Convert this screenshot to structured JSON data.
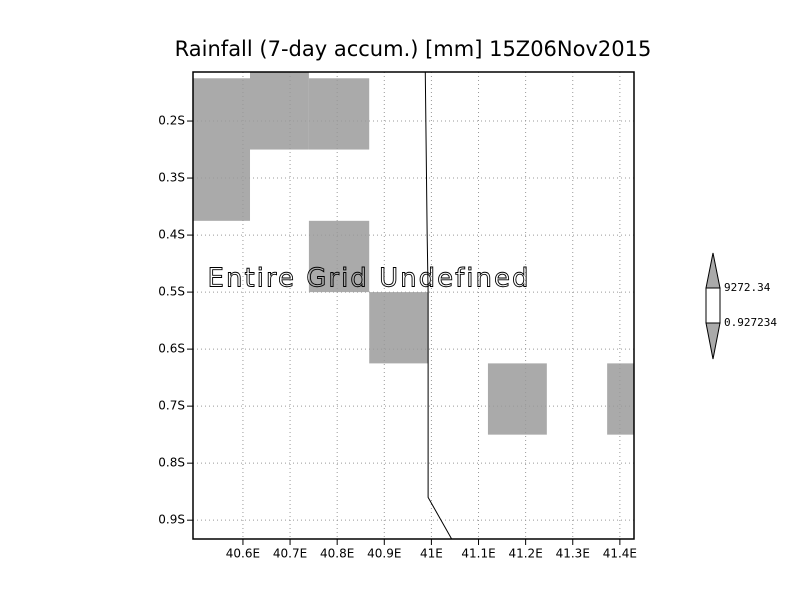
{
  "chart_data": {
    "type": "map",
    "title": "Rainfall (7-day accum.) [mm] 15Z06Nov2015",
    "annotation": "Entire Grid Undefined",
    "xlim": [
      40.494,
      41.43
    ],
    "ylim": [
      -0.933,
      -0.114
    ],
    "xticks": [
      {
        "value": 40.6,
        "label": "40.6E"
      },
      {
        "value": 40.7,
        "label": "40.7E"
      },
      {
        "value": 40.8,
        "label": "40.8E"
      },
      {
        "value": 40.9,
        "label": "40.9E"
      },
      {
        "value": 41.0,
        "label": "41E"
      },
      {
        "value": 41.1,
        "label": "41.1E"
      },
      {
        "value": 41.2,
        "label": "41.2E"
      },
      {
        "value": 41.3,
        "label": "41.3E"
      },
      {
        "value": 41.4,
        "label": "41.4E"
      }
    ],
    "yticks": [
      {
        "value": -0.2,
        "label": "0.2S"
      },
      {
        "value": -0.3,
        "label": "0.3S"
      },
      {
        "value": -0.4,
        "label": "0.4S"
      },
      {
        "value": -0.5,
        "label": "0.5S"
      },
      {
        "value": -0.6,
        "label": "0.6S"
      },
      {
        "value": -0.7,
        "label": "0.7S"
      },
      {
        "value": -0.8,
        "label": "0.8S"
      },
      {
        "value": -0.9,
        "label": "0.9S"
      }
    ],
    "grid": true,
    "cell_color": "#aaaaaa",
    "cells": [
      {
        "lon": [
          40.494,
          40.615
        ],
        "lat": [
          -0.375,
          -0.125
        ]
      },
      {
        "lon": [
          40.615,
          40.74
        ],
        "lat": [
          -0.25,
          -0.114
        ]
      },
      {
        "lon": [
          40.74,
          40.868
        ],
        "lat": [
          -0.25,
          -0.125
        ]
      },
      {
        "lon": [
          40.74,
          40.868
        ],
        "lat": [
          -0.5,
          -0.375
        ]
      },
      {
        "lon": [
          40.868,
          40.993
        ],
        "lat": [
          -0.625,
          -0.5
        ]
      },
      {
        "lon": [
          41.12,
          41.245
        ],
        "lat": [
          -0.75,
          -0.625
        ]
      },
      {
        "lon": [
          41.373,
          41.43
        ],
        "lat": [
          -0.75,
          -0.625
        ]
      }
    ],
    "coastline": {
      "color": "#000000",
      "lon": [
        40.987,
        40.991,
        40.993,
        40.993,
        41.043
      ],
      "lat": [
        -0.114,
        -0.4,
        -0.5,
        -0.86,
        -0.933
      ]
    },
    "colorbar": {
      "colors": [
        "#aaaaaa",
        "#ffffff",
        "#aaaaaa"
      ],
      "levels": [
        9272.34,
        0.927234
      ]
    }
  }
}
